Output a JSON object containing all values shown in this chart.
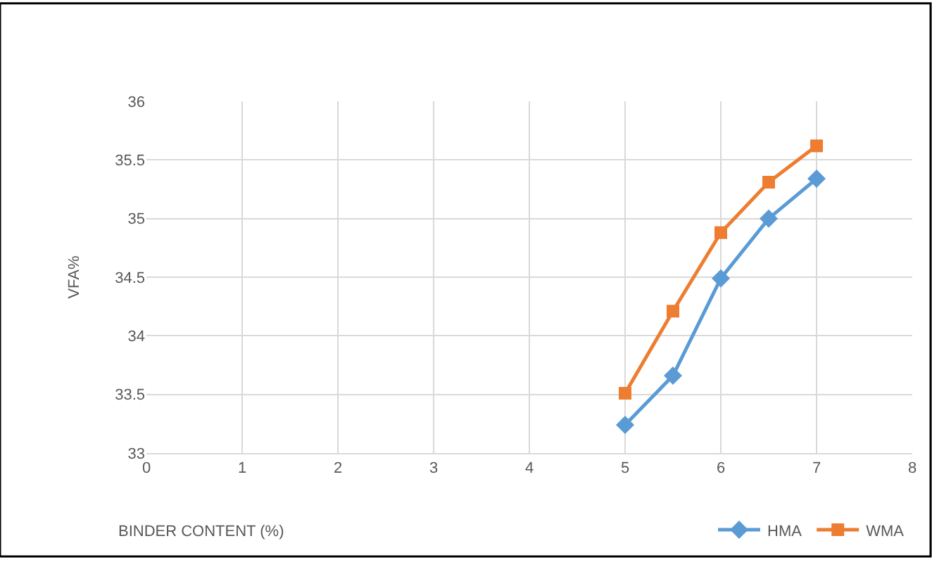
{
  "chart_data": {
    "type": "line",
    "xlabel": "BINDER CONTENT (%)",
    "ylabel": "VFA%",
    "x": [
      5,
      5.5,
      6,
      6.5,
      7
    ],
    "series": [
      {
        "name": "HMA",
        "color": "#5b9bd5",
        "marker": "diamond",
        "values": [
          33.24,
          33.66,
          34.49,
          35.0,
          35.34
        ]
      },
      {
        "name": "WMA",
        "color": "#ed7d31",
        "marker": "square",
        "values": [
          33.51,
          34.21,
          34.88,
          35.31,
          35.62
        ]
      }
    ],
    "xlim": [
      0,
      8
    ],
    "xticks": [
      0,
      1,
      2,
      3,
      4,
      5,
      6,
      7,
      8
    ],
    "ylim": [
      33,
      36
    ],
    "yticks": [
      33,
      33.5,
      34,
      34.5,
      35,
      35.5,
      36
    ],
    "grid": true,
    "legend": "bottom right"
  }
}
